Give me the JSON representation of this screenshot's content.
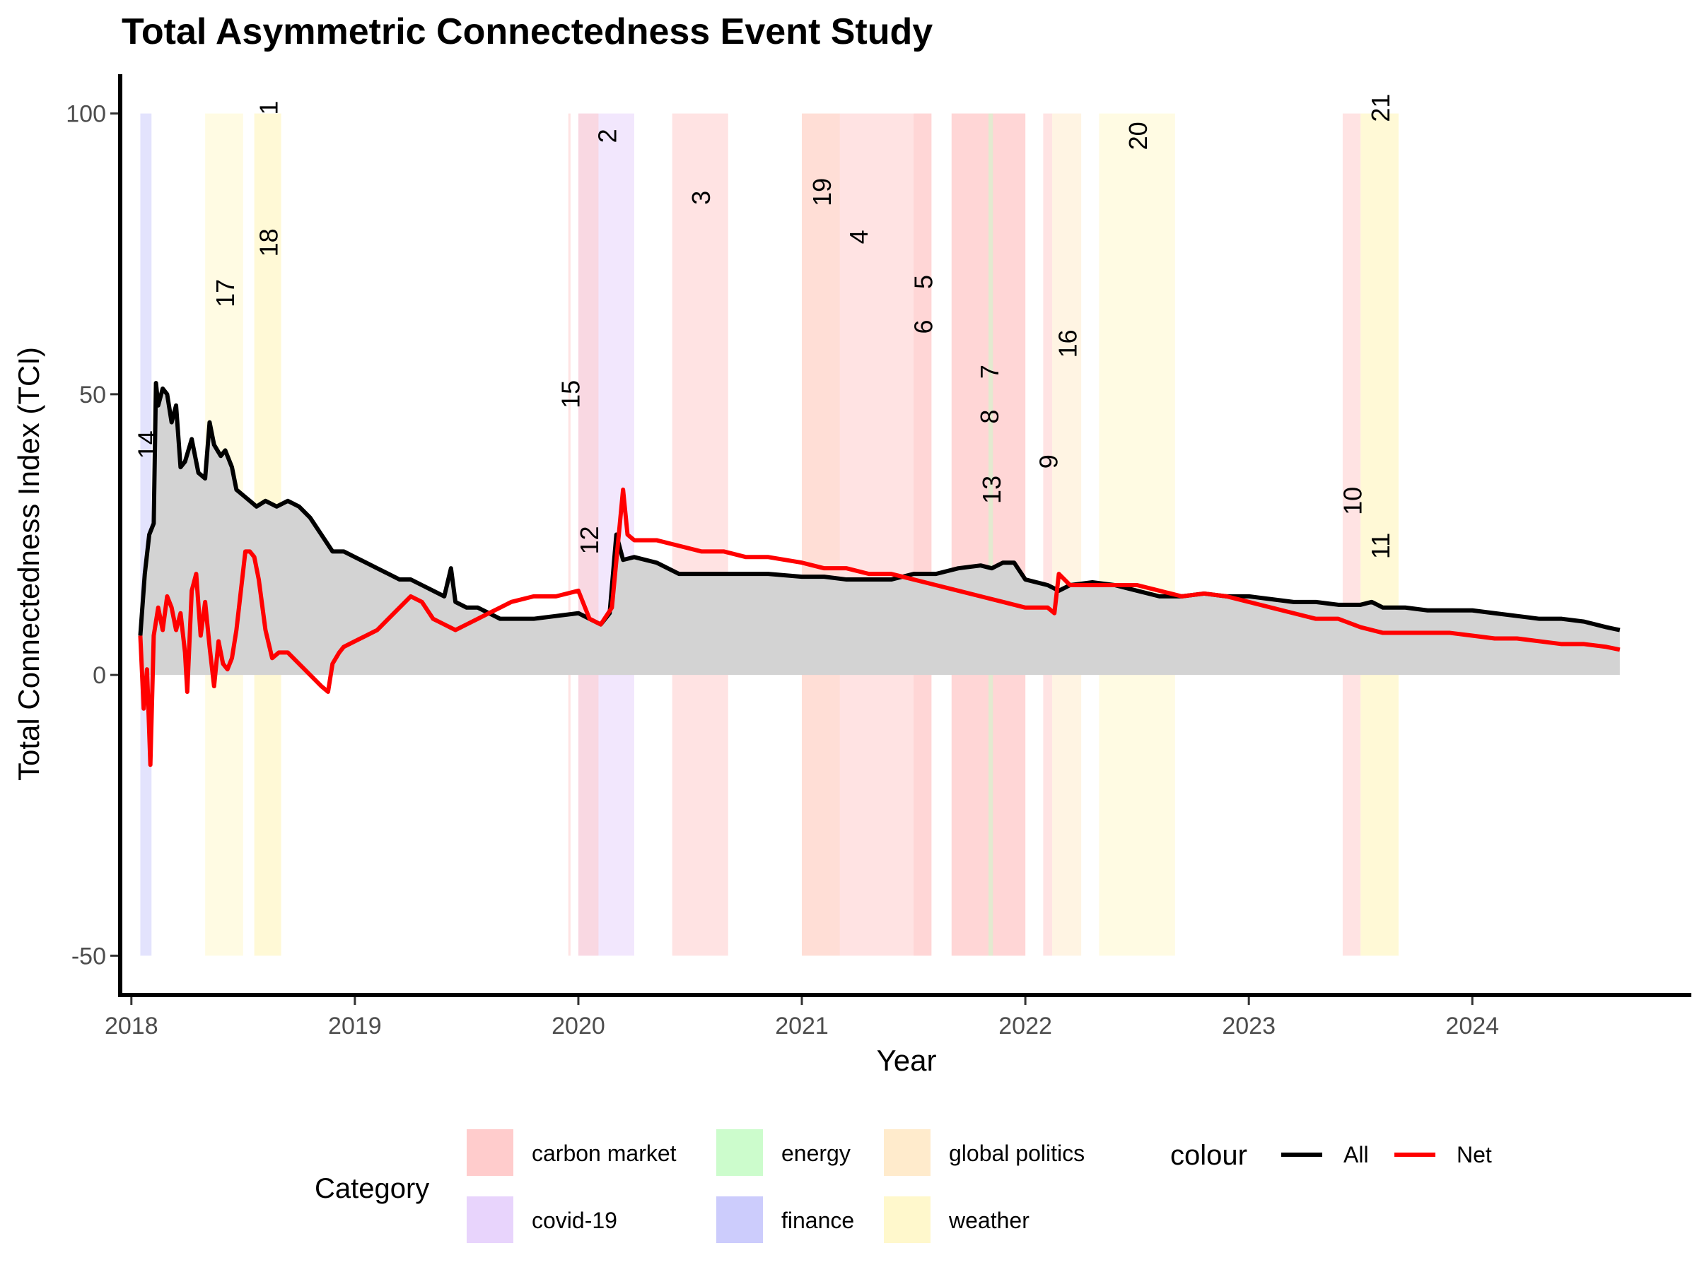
{
  "chart_data": {
    "type": "line",
    "title": "Total Asymmetric Connectedness Event Study",
    "xlabel": "Year",
    "ylabel": "Total Connectedness Index (TCI)",
    "xlim": [
      2017.95,
      2024.98
    ],
    "ylim": [
      -57,
      107
    ],
    "x_ticks": [
      2018,
      2019,
      2020,
      2021,
      2022,
      2023,
      2024
    ],
    "x_tick_labels": [
      "2018",
      "2019",
      "2020",
      "2021",
      "2022",
      "2023",
      "2024"
    ],
    "y_ticks": [
      -50,
      0,
      50,
      100
    ],
    "y_tick_labels": [
      "-50",
      "0",
      "50",
      "100"
    ],
    "grid": false,
    "area_fill_color": "#d3d3d3",
    "legend": {
      "position": "bottom",
      "category_title": "Category",
      "colour_title": "colour",
      "categories": [
        {
          "name": "carbon market",
          "color": "#ffcccc"
        },
        {
          "name": "covid-19",
          "color": "#e8d4fc"
        },
        {
          "name": "energy",
          "color": "#ccfccc"
        },
        {
          "name": "finance",
          "color": "#ccccfc"
        },
        {
          "name": "global politics",
          "color": "#ffebcc"
        },
        {
          "name": "weather",
          "color": "#fff8cc"
        }
      ],
      "lines": [
        {
          "name": "All",
          "color": "#000000"
        },
        {
          "name": "Net",
          "color": "#ff0000"
        }
      ]
    },
    "events": [
      {
        "label": "14",
        "category": "finance",
        "start": 2018.04,
        "end": 2018.09,
        "label_y": 41
      },
      {
        "label": "17",
        "category": "weather",
        "start": 2018.33,
        "end": 2018.5,
        "label_y": 68
      },
      {
        "label": "1",
        "category": "weather",
        "start": 2018.55,
        "end": 2018.67,
        "label_y": 101
      },
      {
        "label": "18",
        "category": "weather",
        "start": 2018.55,
        "end": 2018.67,
        "label_y": 77
      },
      {
        "label": "15",
        "category": "carbon market",
        "start": 2019.955,
        "end": 2019.965,
        "label_y": 50
      },
      {
        "label": "2",
        "category": "covid-19",
        "start": 2020.0,
        "end": 2020.25,
        "label_y": 96
      },
      {
        "label": "12",
        "category": "carbon market",
        "start": 2020.0,
        "end": 2020.09,
        "label_y": 24
      },
      {
        "label": "3",
        "category": "carbon market",
        "start": 2020.42,
        "end": 2020.67,
        "label_y": 85
      },
      {
        "label": "19",
        "category": "global politics",
        "start": 2021.0,
        "end": 2021.17,
        "label_y": 86
      },
      {
        "label": "4",
        "category": "carbon market",
        "start": 2021.0,
        "end": 2021.5,
        "label_y": 78
      },
      {
        "label": "5",
        "category": "carbon market",
        "start": 2021.5,
        "end": 2021.58,
        "label_y": 70
      },
      {
        "label": "6",
        "category": "carbon market",
        "start": 2021.5,
        "end": 2021.58,
        "label_y": 62
      },
      {
        "label": "7",
        "category": "carbon market",
        "start": 2021.67,
        "end": 2022.0,
        "label_y": 54
      },
      {
        "label": "8",
        "category": "carbon market",
        "start": 2021.67,
        "end": 2022.0,
        "label_y": 46
      },
      {
        "label": "13",
        "category": "energy",
        "start": 2021.835,
        "end": 2021.855,
        "label_y": 33
      },
      {
        "label": "9",
        "category": "carbon market",
        "start": 2022.08,
        "end": 2022.12,
        "label_y": 38
      },
      {
        "label": "16",
        "category": "global politics",
        "start": 2022.12,
        "end": 2022.25,
        "label_y": 59
      },
      {
        "label": "20",
        "category": "weather",
        "start": 2022.33,
        "end": 2022.67,
        "label_y": 96
      },
      {
        "label": "10",
        "category": "carbon market",
        "start": 2023.42,
        "end": 2023.5,
        "label_y": 31
      },
      {
        "label": "11",
        "category": "weather",
        "start": 2023.5,
        "end": 2023.67,
        "label_y": 23
      },
      {
        "label": "21",
        "category": "weather",
        "start": 2023.5,
        "end": 2023.67,
        "label_y": 101
      }
    ],
    "series": [
      {
        "name": "All",
        "color": "#000000",
        "x": [
          2018.04,
          2018.06,
          2018.08,
          2018.1,
          2018.11,
          2018.12,
          2018.14,
          2018.16,
          2018.18,
          2018.2,
          2018.22,
          2018.24,
          2018.27,
          2018.3,
          2018.33,
          2018.35,
          2018.37,
          2018.4,
          2018.42,
          2018.45,
          2018.47,
          2018.5,
          2018.53,
          2018.56,
          2018.6,
          2018.65,
          2018.7,
          2018.75,
          2018.8,
          2018.85,
          2018.9,
          2018.95,
          2019.0,
          2019.05,
          2019.1,
          2019.15,
          2019.2,
          2019.25,
          2019.3,
          2019.35,
          2019.4,
          2019.43,
          2019.45,
          2019.5,
          2019.55,
          2019.6,
          2019.65,
          2019.7,
          2019.8,
          2019.9,
          2020.0,
          2020.05,
          2020.1,
          2020.14,
          2020.17,
          2020.2,
          2020.25,
          2020.35,
          2020.45,
          2020.55,
          2020.7,
          2020.85,
          2021.0,
          2021.1,
          2021.2,
          2021.3,
          2021.4,
          2021.5,
          2021.6,
          2021.7,
          2021.8,
          2021.85,
          2021.9,
          2021.95,
          2022.0,
          2022.1,
          2022.15,
          2022.2,
          2022.3,
          2022.4,
          2022.5,
          2022.6,
          2022.7,
          2022.8,
          2022.9,
          2023.0,
          2023.1,
          2023.2,
          2023.3,
          2023.4,
          2023.5,
          2023.55,
          2023.6,
          2023.7,
          2023.8,
          2023.9,
          2024.0,
          2024.1,
          2024.2,
          2024.3,
          2024.4,
          2024.5,
          2024.6,
          2024.66
        ],
        "values": [
          7,
          18,
          25,
          27,
          52,
          48,
          51,
          50,
          45,
          48,
          37,
          38,
          42,
          36,
          35,
          45,
          41,
          39,
          40,
          37,
          33,
          32,
          31,
          30,
          31,
          30,
          31,
          30,
          28,
          25,
          22,
          22,
          21,
          20,
          19,
          18,
          17,
          17,
          16,
          15,
          14,
          19,
          13,
          12,
          12,
          11,
          10,
          10,
          10,
          10.5,
          11,
          10,
          9,
          11,
          25,
          20.5,
          21,
          20,
          18,
          18,
          18,
          18,
          17.5,
          17.5,
          17,
          17,
          17,
          18,
          18,
          19,
          19.5,
          19,
          20,
          20,
          17,
          16,
          15,
          16,
          16.5,
          16,
          15,
          14,
          14,
          14.5,
          14,
          14,
          13.5,
          13,
          13,
          12.5,
          12.5,
          13,
          12,
          12,
          11.5,
          11.5,
          11.5,
          11,
          10.5,
          10,
          10,
          9.5,
          8.5,
          8
        ]
      },
      {
        "name": "Net",
        "color": "#ff0000",
        "x": [
          2018.04,
          2018.055,
          2018.07,
          2018.085,
          2018.1,
          2018.12,
          2018.14,
          2018.16,
          2018.18,
          2018.2,
          2018.22,
          2018.24,
          2018.25,
          2018.27,
          2018.29,
          2018.31,
          2018.33,
          2018.35,
          2018.37,
          2018.39,
          2018.41,
          2018.43,
          2018.45,
          2018.47,
          2018.49,
          2018.51,
          2018.53,
          2018.55,
          2018.57,
          2018.6,
          2018.63,
          2018.66,
          2018.7,
          2018.75,
          2018.8,
          2018.85,
          2018.88,
          2018.9,
          2018.93,
          2018.95,
          2019.0,
          2019.05,
          2019.1,
          2019.15,
          2019.2,
          2019.25,
          2019.3,
          2019.35,
          2019.4,
          2019.45,
          2019.5,
          2019.55,
          2019.6,
          2019.65,
          2019.7,
          2019.8,
          2019.9,
          2020.0,
          2020.05,
          2020.1,
          2020.15,
          2020.2,
          2020.22,
          2020.25,
          2020.35,
          2020.45,
          2020.55,
          2020.65,
          2020.75,
          2020.85,
          2021.0,
          2021.1,
          2021.2,
          2021.3,
          2021.4,
          2021.5,
          2021.6,
          2021.7,
          2021.8,
          2021.9,
          2022.0,
          2022.1,
          2022.13,
          2022.15,
          2022.2,
          2022.3,
          2022.4,
          2022.5,
          2022.6,
          2022.7,
          2022.8,
          2022.9,
          2023.0,
          2023.1,
          2023.2,
          2023.3,
          2023.4,
          2023.5,
          2023.55,
          2023.6,
          2023.7,
          2023.8,
          2023.9,
          2024.0,
          2024.1,
          2024.2,
          2024.3,
          2024.4,
          2024.5,
          2024.6,
          2024.66
        ],
        "values": [
          7,
          -6,
          1,
          -16,
          7,
          12,
          8,
          14,
          12,
          8,
          11,
          4,
          -3,
          15,
          18,
          7,
          13,
          5,
          -2,
          6,
          2,
          1,
          3,
          8,
          15,
          22,
          22,
          21,
          17,
          8,
          3,
          4,
          4,
          2,
          0,
          -2,
          -3,
          2,
          4,
          5,
          6,
          7,
          8,
          10,
          12,
          14,
          13,
          10,
          9,
          8,
          9,
          10,
          11,
          12,
          13,
          14,
          14,
          15,
          10,
          9,
          12,
          33,
          25,
          24,
          24,
          23,
          22,
          22,
          21,
          21,
          20,
          19,
          19,
          18,
          18,
          17,
          16,
          15,
          14,
          13,
          12,
          12,
          11,
          18,
          16,
          16,
          16,
          16,
          15,
          14,
          14.5,
          14,
          13,
          12,
          11,
          10,
          10,
          8.5,
          8,
          7.5,
          7.5,
          7.5,
          7.5,
          7,
          6.5,
          6.5,
          6,
          5.5,
          5.5,
          5,
          4.5
        ]
      }
    ]
  }
}
